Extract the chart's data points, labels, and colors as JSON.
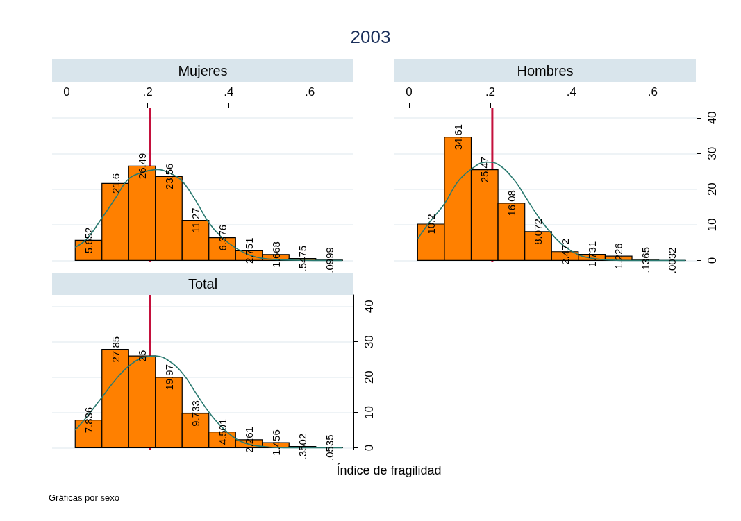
{
  "chart_data": [
    {
      "type": "histogram",
      "title": "Mujeres",
      "annotations": [
        "2003"
      ],
      "bins": [
        0.021,
        0.087,
        0.153,
        0.219,
        0.285,
        0.351,
        0.417,
        0.483,
        0.549,
        0.615,
        0.681
      ],
      "values": [
        5.652,
        21.6,
        26.49,
        23.56,
        11.27,
        6.376,
        2.751,
        1.668,
        0.5475,
        0.0999
      ],
      "value_labels": [
        "5.652",
        "21.6",
        "26.49",
        "23.56",
        "11.27",
        "6.376",
        "2.751",
        "1.668",
        ".5475",
        ".0999"
      ],
      "color": "#ff8000",
      "series": [
        {
          "type": "line",
          "color": "#2a7a70",
          "x": [
            0.021,
            0.05,
            0.087,
            0.12,
            0.153,
            0.19,
            0.225,
            0.26,
            0.285,
            0.32,
            0.351,
            0.38,
            0.417,
            0.45,
            0.483,
            0.55,
            0.681
          ],
          "values": [
            3.7,
            6.1,
            11.9,
            17.4,
            22.9,
            24.8,
            25.5,
            24.2,
            22.3,
            16.5,
            10.6,
            6.8,
            3.5,
            1.6,
            0.6,
            0.1,
            0
          ]
        }
      ],
      "ref_lines": [
        {
          "axis": "x",
          "value": 0.205,
          "color": "#c4103c"
        }
      ],
      "xlim": [
        -0.036,
        0.708
      ],
      "xticks": [
        0,
        {
          "value": 0.2,
          "label": ".2"
        },
        {
          "value": 0.4,
          "label": ".4"
        },
        {
          "value": 0.6,
          "label": ".6"
        }
      ],
      "ylim": [
        -0.5,
        42.9
      ],
      "yticks": [
        0,
        10,
        20,
        30,
        40
      ],
      "grid": "y",
      "tick_labels": "x"
    },
    {
      "type": "histogram",
      "title": "Hombres",
      "bins": [
        0.021,
        0.087,
        0.153,
        0.219,
        0.285,
        0.351,
        0.417,
        0.483,
        0.549,
        0.615,
        0.681
      ],
      "values": [
        10.2,
        34.61,
        25.47,
        16.08,
        8.072,
        2.472,
        1.731,
        1.226,
        0.1365,
        0.0032
      ],
      "value_labels": [
        "10.2",
        "34.61",
        "25.47",
        "16.08",
        "8.072",
        "2.472",
        "1.731",
        "1.226",
        ".1365",
        ".0032"
      ],
      "color": "#ff8000",
      "series": [
        {
          "type": "line",
          "color": "#2a7a70",
          "x": [
            0.022,
            0.05,
            0.087,
            0.12,
            0.153,
            0.19,
            0.22,
            0.26,
            0.29,
            0.32,
            0.351,
            0.38,
            0.417,
            0.45,
            0.5,
            0.55,
            0.681
          ],
          "values": [
            6.2,
            10.7,
            15.9,
            22.1,
            25.6,
            27.6,
            26.9,
            22.4,
            17.2,
            12,
            7.5,
            4.2,
            1.6,
            0.6,
            0.1,
            0,
            0
          ]
        }
      ],
      "ref_lines": [
        {
          "axis": "x",
          "value": 0.205,
          "color": "#c4103c"
        }
      ],
      "xlim": [
        -0.036,
        0.708
      ],
      "xticks": [
        0,
        {
          "value": 0.2,
          "label": ".2"
        },
        {
          "value": 0.4,
          "label": ".4"
        },
        {
          "value": 0.6,
          "label": ".6"
        }
      ],
      "ylim": [
        -0.5,
        42.9
      ],
      "yticks": [
        0,
        10,
        20,
        30,
        40
      ],
      "grid": "y"
    },
    {
      "type": "histogram",
      "title": "Total",
      "xlabel": "Índice de fragilidad",
      "annotations": [
        "Gráficas por sexo"
      ],
      "bins": [
        0.021,
        0.087,
        0.153,
        0.219,
        0.285,
        0.351,
        0.417,
        0.483,
        0.549,
        0.615,
        0.681
      ],
      "values": [
        7.836,
        27.85,
        26,
        19.97,
        9.733,
        4.501,
        2.261,
        1.456,
        0.3502,
        0.0535
      ],
      "value_labels": [
        "7.836",
        "27.85",
        "26",
        "19.97",
        "9.733",
        "4.501",
        "2.261",
        "1.456",
        ".3502",
        ".0535"
      ],
      "color": "#ff8000",
      "series": [
        {
          "type": "line",
          "color": "#2a7a70",
          "x": [
            0.021,
            0.05,
            0.087,
            0.12,
            0.153,
            0.19,
            0.22,
            0.26,
            0.29,
            0.32,
            0.351,
            0.38,
            0.417,
            0.45,
            0.5,
            0.55,
            0.681
          ],
          "values": [
            5,
            8.8,
            14.3,
            19.2,
            23.1,
            25.6,
            26,
            24,
            20.5,
            15.3,
            10.1,
            6.2,
            2.6,
            1,
            0.2,
            0,
            0
          ]
        }
      ],
      "ref_lines": [
        {
          "axis": "x",
          "value": 0.205,
          "color": "#c4103c"
        }
      ],
      "xlim": [
        -0.036,
        0.708
      ],
      "ylim": [
        -0.5,
        43.3
      ],
      "yticks": [
        0,
        10,
        20,
        30,
        40
      ],
      "grid": "y",
      "tick_labels": "y"
    }
  ]
}
